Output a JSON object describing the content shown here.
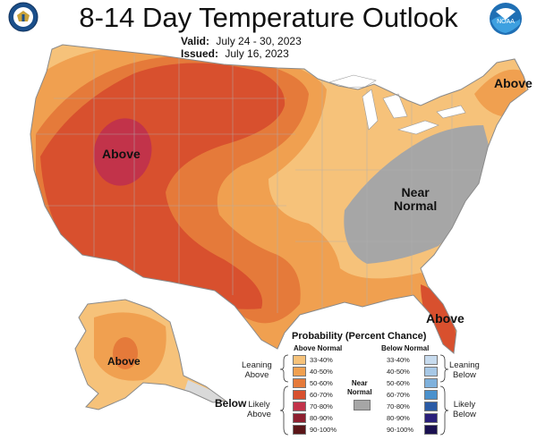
{
  "header": {
    "title": "8-14 Day Temperature Outlook",
    "valid_label": "Valid:",
    "valid_value": "July 24 - 30, 2023",
    "issued_label": "Issued:",
    "issued_value": "July 16, 2023"
  },
  "map_labels": {
    "above_west": "Above",
    "above_northeast": "Above",
    "above_florida": "Above",
    "near_normal_line1": "Near",
    "near_normal_line2": "Normal",
    "above_alaska": "Above",
    "below_alaska": "Below"
  },
  "legend": {
    "title": "Probability (Percent Chance)",
    "above_header": "Above Normal",
    "below_header": "Below Normal",
    "near_header_line1": "Near",
    "near_header_line2": "Normal",
    "leaning_above_line1": "Leaning",
    "leaning_above_line2": "Above",
    "likely_above_line1": "Likely",
    "likely_above_line2": "Above",
    "leaning_below_line1": "Leaning",
    "leaning_below_line2": "Below",
    "likely_below_line1": "Likely",
    "likely_below_line2": "Below",
    "above_bins": [
      {
        "label": "33-40%",
        "color": "#f6c27a"
      },
      {
        "label": "40-50%",
        "color": "#f0a050"
      },
      {
        "label": "50-60%",
        "color": "#e57a3a"
      },
      {
        "label": "60-70%",
        "color": "#d8502e"
      },
      {
        "label": "70-80%",
        "color": "#c2334a"
      },
      {
        "label": "80-90%",
        "color": "#8e2030"
      },
      {
        "label": "90-100%",
        "color": "#5a1518"
      }
    ],
    "below_bins": [
      {
        "label": "33-40%",
        "color": "#c7dbee"
      },
      {
        "label": "40-50%",
        "color": "#a7c8e6"
      },
      {
        "label": "50-60%",
        "color": "#7fb1dc"
      },
      {
        "label": "60-70%",
        "color": "#4a91cd"
      },
      {
        "label": "70-80%",
        "color": "#2a5aa4"
      },
      {
        "label": "80-90%",
        "color": "#2a1f7a"
      },
      {
        "label": "90-100%",
        "color": "#1a1050"
      }
    ],
    "near_color": "#a6a6a6"
  },
  "logos": {
    "left": "department-of-commerce-seal-icon",
    "right": "noaa-logo-icon",
    "right_text": "NOAA"
  }
}
